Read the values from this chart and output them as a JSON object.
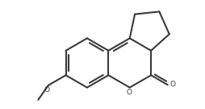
{
  "background_color": "#ffffff",
  "line_color": "#3a3a3a",
  "line_width": 1.5,
  "fig_width": 2.54,
  "fig_height": 1.35,
  "dpi": 100,
  "methoxy_O_label": "O",
  "carbonyl_O_label": "O",
  "ring_O_label": "O"
}
